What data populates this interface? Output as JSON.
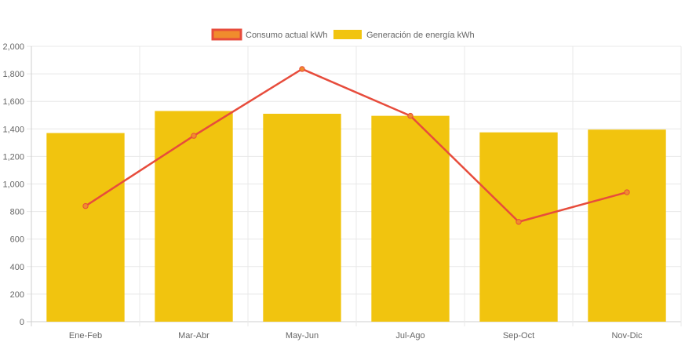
{
  "chart_data": {
    "type": "bar",
    "title": "",
    "xlabel": "",
    "ylabel": "",
    "categories": [
      "Ene-Feb",
      "Mar-Abr",
      "May-Jun",
      "Jul-Ago",
      "Sep-Oct",
      "Nov-Dic"
    ],
    "ylim": [
      0,
      2000
    ],
    "yticks": [
      "0",
      "200",
      "400",
      "600",
      "800",
      "1,000",
      "1,200",
      "1,400",
      "1,600",
      "1,800",
      "2,000"
    ],
    "ytick_values": [
      0,
      200,
      400,
      600,
      800,
      1000,
      1200,
      1400,
      1600,
      1800,
      2000
    ],
    "grid": true,
    "legend_position": "top-center",
    "series": [
      {
        "name": "Consumo actual kWh",
        "type": "line",
        "color": "#e74c3c",
        "fill": "#f08c2d",
        "values": [
          840,
          1350,
          1835,
          1495,
          725,
          940
        ]
      },
      {
        "name": "Generación de energía kWh",
        "type": "bar",
        "color": "#f1c40f",
        "values": [
          1370,
          1530,
          1510,
          1495,
          1375,
          1395
        ]
      }
    ]
  }
}
